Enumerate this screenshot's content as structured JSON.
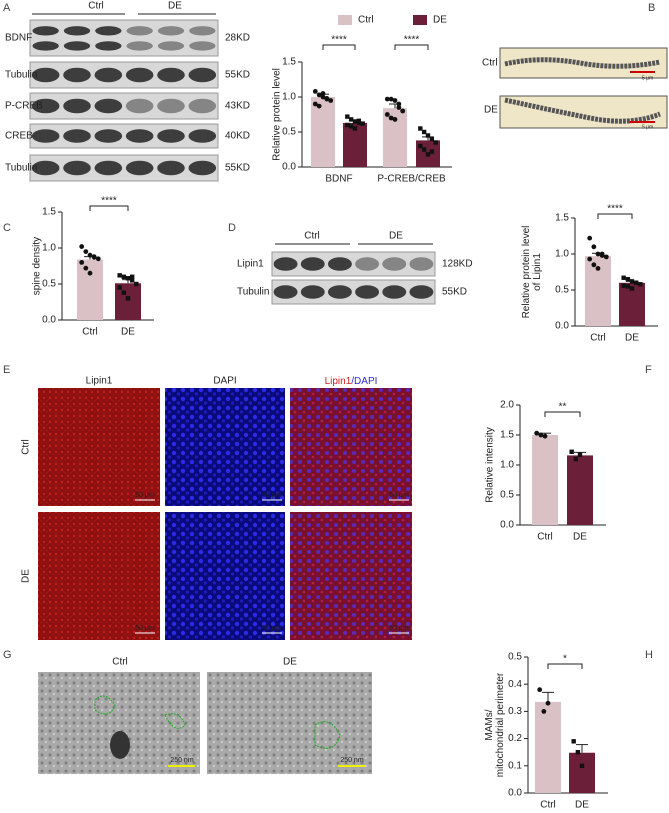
{
  "panel_letters": [
    "A",
    "B",
    "C",
    "D",
    "E",
    "F",
    "G",
    "H"
  ],
  "blot_a": {
    "group_labels": [
      "Ctrl",
      "DE"
    ],
    "rows": [
      {
        "protein": "BDNF",
        "size": "28KD"
      },
      {
        "protein": "Tubulin",
        "size": "55KD"
      },
      {
        "protein": "P-CREB",
        "size": "43KD"
      },
      {
        "protein": "CREB",
        "size": "40KD"
      },
      {
        "protein": "Tubulin",
        "size": "55KD"
      }
    ]
  },
  "panel_b": {
    "row_labels": [
      "Ctrl",
      "DE"
    ],
    "scale_label": "5 μm"
  },
  "blot_d": {
    "group_labels": [
      "Ctrl",
      "DE"
    ],
    "rows": [
      {
        "protein": "Lipin1",
        "size": "128KD"
      },
      {
        "protein": "Tubulin",
        "size": "55KD"
      }
    ]
  },
  "panel_e": {
    "column_titles": [
      "Lipin1",
      "DAPI"
    ],
    "merged_title_parts": [
      "Lipin1",
      "/DAPI"
    ],
    "row_labels": [
      "Ctrl",
      "DE"
    ],
    "scale_label": "50 μm"
  },
  "panel_g": {
    "column_titles": [
      "Ctrl",
      "DE"
    ],
    "scale_label": "250 nm"
  },
  "chart_data": [
    {
      "type": "grouped_bar",
      "y_label": [
        "Relative protein level"
      ],
      "categories": [
        "BDNF",
        "P-CREB/CREB"
      ],
      "series": [
        {
          "name": "Ctrl",
          "color": "#d9c1c6",
          "values": [
            1.0,
            0.84
          ],
          "errors": [
            0.04,
            0.06
          ],
          "points": [
            [
              1.08,
              1.03,
              1.0,
              0.98,
              0.95,
              0.9,
              0.87,
              1.05,
              0.97
            ],
            [
              0.97,
              0.97,
              0.95,
              0.85,
              0.8,
              0.75,
              0.7,
              0.68,
              0.9
            ]
          ]
        },
        {
          "name": "DE",
          "color": "#6b1f38",
          "values": [
            0.63,
            0.38
          ],
          "errors": [
            0.03,
            0.05
          ],
          "points": [
            [
              0.72,
              0.68,
              0.65,
              0.63,
              0.62,
              0.6,
              0.58,
              0.55,
              0.66
            ],
            [
              0.55,
              0.5,
              0.45,
              0.4,
              0.35,
              0.3,
              0.25,
              0.18,
              0.22
            ]
          ]
        }
      ],
      "significance": [
        "****",
        "****"
      ],
      "ylim": [
        0,
        1.5
      ],
      "yticks": [
        {
          "value": 0,
          "label": "0.0"
        },
        0.5,
        {
          "value": 1,
          "label": "1.0"
        },
        1.5
      ],
      "legend": "top"
    },
    {
      "type": "bar",
      "y_label": [
        "spine density"
      ],
      "categories": [
        "Ctrl",
        "DE"
      ],
      "colors": [
        "#d9c1c6",
        "#6b1f38"
      ],
      "values": [
        0.84,
        0.51
      ],
      "errors": [
        0.04,
        0.05
      ],
      "points": [
        [
          1.02,
          0.95,
          0.9,
          0.88,
          0.85,
          0.8,
          0.72,
          0.65,
          0.87
        ],
        [
          0.62,
          0.6,
          0.58,
          0.55,
          0.5,
          0.45,
          0.38,
          0.3,
          0.6
        ]
      ],
      "significance": [
        "****"
      ],
      "ylim": [
        0,
        1.5
      ],
      "yticks": [
        {
          "value": 0,
          "label": "0.0"
        },
        0.5,
        {
          "value": 1,
          "label": "1.0"
        },
        1.5
      ]
    },
    {
      "type": "bar",
      "y_label": [
        "Relative protein level",
        "of Lipin1"
      ],
      "categories": [
        "Ctrl",
        "DE"
      ],
      "colors": [
        "#d9c1c6",
        "#6b1f38"
      ],
      "values": [
        0.97,
        0.6
      ],
      "errors": [
        0.04,
        0.02
      ],
      "points": [
        [
          1.22,
          1.1,
          1.0,
          0.98,
          0.96,
          0.93,
          0.85,
          0.8,
          1.0
        ],
        [
          0.67,
          0.65,
          0.62,
          0.6,
          0.58,
          0.56,
          0.55,
          0.52,
          0.6
        ]
      ],
      "significance": [
        "****"
      ],
      "ylim": [
        0,
        1.5
      ],
      "yticks": [
        {
          "value": 0,
          "label": "0.0"
        },
        0.5,
        {
          "value": 1,
          "label": "1.0"
        },
        1.5
      ]
    },
    {
      "type": "bar",
      "y_label": [
        "Relative intensity"
      ],
      "categories": [
        "Ctrl",
        "DE"
      ],
      "colors": [
        "#d9c1c6",
        "#6b1f38"
      ],
      "values": [
        1.5,
        1.16
      ],
      "errors": [
        0.03,
        0.05
      ],
      "points": [
        [
          1.53,
          1.5,
          1.48
        ],
        [
          1.22,
          1.1,
          1.17
        ]
      ],
      "significance": [
        "**"
      ],
      "ylim": [
        0,
        2
      ],
      "yticks": [
        {
          "value": 0,
          "label": "0.0"
        },
        0.5,
        {
          "value": 1,
          "label": "1.0"
        },
        1.5,
        {
          "value": 2,
          "label": "2.0"
        }
      ]
    },
    {
      "type": "bar",
      "y_label": [
        "MAMs/",
        "mitochondrial perimeter"
      ],
      "categories": [
        "Ctrl",
        "DE"
      ],
      "colors": [
        "#d9c1c6",
        "#6b1f38"
      ],
      "values": [
        0.335,
        0.148
      ],
      "errors": [
        0.035,
        0.03
      ],
      "points": [
        [
          0.38,
          0.3,
          0.33
        ],
        [
          0.19,
          0.15,
          0.1
        ]
      ],
      "significance": [
        "*"
      ],
      "ylim": [
        0,
        0.5
      ],
      "yticks": [
        {
          "value": 0,
          "label": "0.0"
        },
        0.1,
        0.2,
        0.3,
        0.4,
        0.5
      ]
    }
  ]
}
